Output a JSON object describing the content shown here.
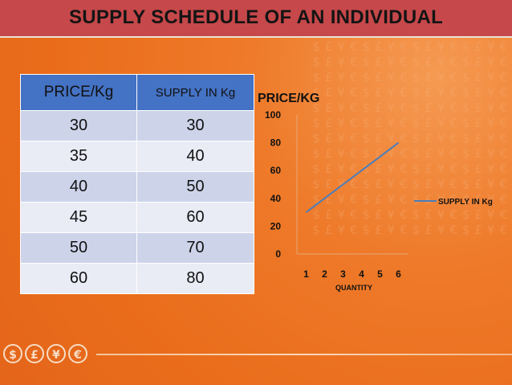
{
  "title": "SUPPLY SCHEDULE OF AN INDIVIDUAL",
  "table": {
    "headers": [
      "PRICE/Kg",
      "SUPPLY IN Kg"
    ],
    "rows": [
      [
        "30",
        "30"
      ],
      [
        "35",
        "40"
      ],
      [
        "40",
        "50"
      ],
      [
        "45",
        "60"
      ],
      [
        "50",
        "70"
      ],
      [
        "60",
        "80"
      ]
    ]
  },
  "chart_data": {
    "type": "line",
    "title": "PRICE/KG",
    "xlabel": "QUANTITY",
    "ylabel": "",
    "x": [
      1,
      2,
      3,
      4,
      5,
      6
    ],
    "xticks": [
      "1",
      "2",
      "3",
      "4",
      "5",
      "6"
    ],
    "yticks": [
      "0",
      "20",
      "40",
      "60",
      "80",
      "100"
    ],
    "ylim": [
      0,
      100
    ],
    "grid": false,
    "legend_position": "right",
    "series": [
      {
        "name": "SUPPLY IN Kg",
        "values": [
          30,
          40,
          50,
          60,
          70,
          80
        ],
        "color": "#4a7ebb"
      }
    ]
  },
  "currency_icons": [
    "$",
    "£",
    "¥",
    "€"
  ],
  "colors": {
    "background": "#ef7421",
    "title_bar": "#c6484a",
    "table_header": "#4472c4"
  }
}
